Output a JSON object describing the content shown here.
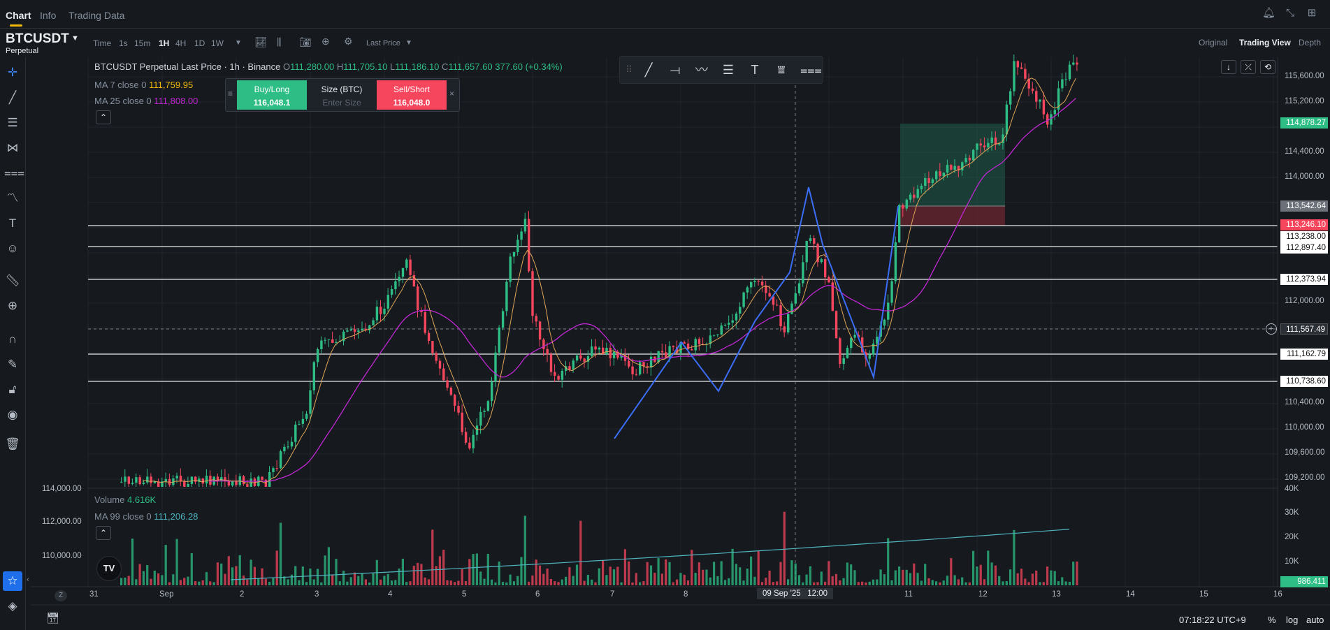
{
  "top_tabs": [
    "Chart",
    "Info",
    "Trading Data"
  ],
  "symbol": {
    "name": "BTCUSDT",
    "type": "Perpetual"
  },
  "timeframes": [
    "Time",
    "1s",
    "15m",
    "1H",
    "4H",
    "1D",
    "1W"
  ],
  "selected_timeframe": "1H",
  "price_source": "Last Price",
  "view_modes": [
    "Original",
    "Trading View",
    "Depth"
  ],
  "selected_view": "Trading View",
  "legend": {
    "title": "BTCUSDT Perpetual Last Price · 1h · Binance",
    "o_label": "O",
    "o": "111,280.00",
    "h_label": "H",
    "h": "111,705.10",
    "l_label": "L",
    "l": "111,186.10",
    "c_label": "C",
    "c": "111,657.60",
    "change": "377.60 (+0.34%)",
    "ma7_label": "MA 7 close 0",
    "ma7_value": "111,759.95",
    "ma25_label": "MA 25 close 0",
    "ma25_value": "111,808.00"
  },
  "order_panel": {
    "buy_label": "Buy/Long",
    "buy_price": "116,048.1",
    "size_label": "Size (BTC)",
    "size_placeholder": "Enter Size",
    "sell_label": "Sell/Short",
    "sell_price": "116,048.0"
  },
  "price_axis_ticks": [
    "115,600.00",
    "115,200.00",
    "114,400.00",
    "114,000.00",
    "112,000.00",
    "110,400.00",
    "110,000.00",
    "109,600.00",
    "109,200.00"
  ],
  "price_labels": [
    {
      "text": "114,878.27",
      "color": "#2ebd85"
    },
    {
      "text": "113,542.64",
      "color": "#6b7079"
    },
    {
      "text": "113,246.10",
      "color": "#f6465d"
    },
    {
      "text": "113,238.00",
      "color": "#ffffff"
    },
    {
      "text": "112,897.40",
      "color": "#ffffff"
    },
    {
      "text": "112,373.94",
      "color": "#ffffff"
    },
    {
      "text": "111,567.49",
      "color": "#2b2f36"
    },
    {
      "text": "111,162.79",
      "color": "#ffffff"
    },
    {
      "text": "110,738.60",
      "color": "#ffffff"
    }
  ],
  "volume_legend": {
    "label": "Volume",
    "value": "4.616K",
    "ma99_label": "MA 99 close 0",
    "ma99_value": "111,206.28"
  },
  "volume_axis": [
    "40K",
    "30K",
    "20K",
    "10K"
  ],
  "volume_last": "986.411",
  "left_price_ticks": [
    "114,000.00",
    "112,000.00",
    "110,000.00"
  ],
  "x_axis": [
    "31",
    "Sep",
    "2",
    "3",
    "4",
    "5",
    "6",
    "7",
    "8",
    "11",
    "12",
    "13",
    "14",
    "15",
    "16"
  ],
  "crosshair_date": "09 Sep '25   12:00",
  "time_display": "07:18:22 UTC+9",
  "bottom_options": [
    "%",
    "log",
    "auto"
  ],
  "z_label": "Z",
  "colors": {
    "up": "#2ebd85",
    "down": "#f6465d",
    "ma7": "#f0b90b",
    "ma25": "#c026d3",
    "ma99": "#4fb3bf",
    "pattern": "#3b6cf6",
    "accent": "#f0b90b"
  }
}
